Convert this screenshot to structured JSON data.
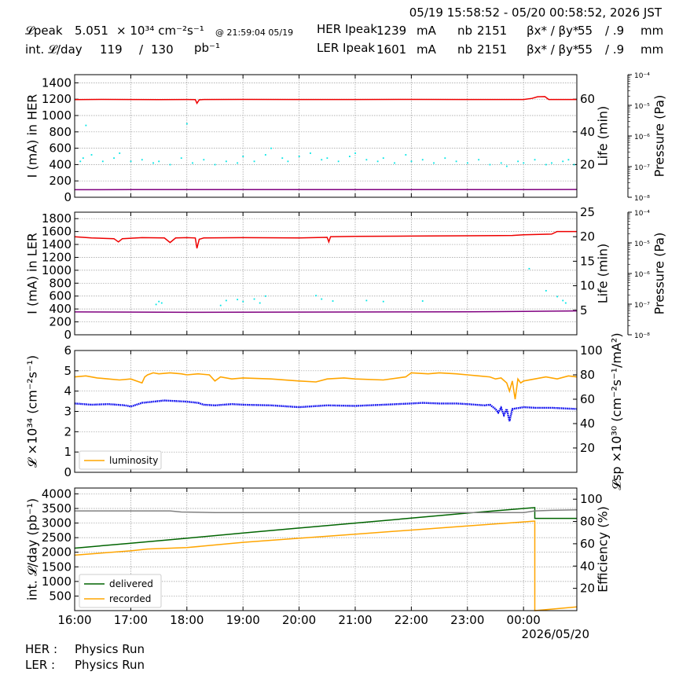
{
  "header": {
    "time_range": "05/19 15:58:52 - 05/20 00:58:52, 2026 JST",
    "lpeak_label": "𝓛peak",
    "lpeak_value": "5.051",
    "lpeak_unit": "× 10³⁴ cm⁻²s⁻¹",
    "lpeak_time": "@ 21:59:04 05/19",
    "intl_label": "int. 𝓛/day",
    "intl_value1": "119",
    "intl_sep": "/",
    "intl_value2": "130",
    "intl_unit": "pb⁻¹",
    "her_label": "HER Ipeak",
    "her_value": "1239",
    "her_unit": "mA",
    "ler_label": "LER Ipeak",
    "ler_value": "1601",
    "ler_unit": "mA",
    "nb_label": "nb",
    "nb_her": "2151",
    "nb_ler": "2151",
    "beta_label": "βx* / βy*",
    "beta_her_x": "55",
    "beta_her_y": "/ .9",
    "beta_ler_x": "55",
    "beta_ler_y": "/ .9",
    "beta_unit": "mm"
  },
  "footer": {
    "her_label": "HER :",
    "her_status": "Physics Run",
    "ler_label": "LER :",
    "ler_status": "Physics Run"
  },
  "colors": {
    "current": "#ee0000",
    "lifetime": "#00e5e5",
    "pressure": "#800080",
    "luminosity": "#ffa500",
    "specific_luminosity": "#0000ee",
    "delivered": "#006400",
    "recorded": "#ffa500",
    "efficiency": "#808080"
  },
  "chart_data": [
    {
      "type": "line",
      "panel": "her",
      "ylabel": "I (mA) in HER",
      "ylim": [
        0,
        1500
      ],
      "yticks": [
        0,
        200,
        400,
        600,
        800,
        1000,
        1200,
        1400
      ],
      "y2label": "Life (min)",
      "y2lim": [
        0,
        75
      ],
      "y2ticks": [
        20,
        40,
        60
      ],
      "y3label": "Pressure (Pa)",
      "y3ticks": [
        "10⁻⁴",
        "10⁻⁵",
        "10⁻⁶",
        "10⁻⁷",
        "10⁻⁸"
      ],
      "xlim": [
        16.0,
        24.95
      ],
      "grid": true,
      "series": [
        {
          "role": "current",
          "x": [
            16.0,
            16.5,
            17.0,
            17.5,
            18.0,
            18.15,
            18.18,
            18.22,
            18.3,
            19.0,
            20.0,
            21.0,
            22.0,
            23.0,
            24.0,
            24.15,
            24.25,
            24.38,
            24.45,
            24.95
          ],
          "y": [
            1195,
            1197,
            1196,
            1195,
            1196,
            1195,
            1150,
            1192,
            1196,
            1197,
            1196,
            1196,
            1197,
            1196,
            1196,
            1210,
            1230,
            1232,
            1196,
            1196
          ]
        },
        {
          "role": "pressure",
          "x": [
            16.0,
            17.0,
            18.0,
            19.0,
            20.0,
            21.0,
            22.0,
            23.0,
            24.0,
            24.95
          ],
          "y": [
            92,
            93,
            93,
            93,
            93,
            93,
            93,
            94,
            94,
            95
          ]
        },
        {
          "role": "lifetime",
          "x": [
            16.1,
            16.15,
            16.2,
            16.3,
            16.5,
            16.7,
            16.8,
            17.0,
            17.2,
            17.4,
            17.5,
            17.7,
            17.9,
            18.0,
            18.1,
            18.3,
            18.5,
            18.7,
            18.9,
            19.0,
            19.2,
            19.4,
            19.5,
            19.7,
            19.8,
            20.0,
            20.2,
            20.4,
            20.5,
            20.7,
            20.9,
            21.0,
            21.2,
            21.4,
            21.5,
            21.7,
            21.9,
            22.0,
            22.2,
            22.4,
            22.6,
            22.8,
            23.0,
            23.2,
            23.4,
            23.6,
            23.7,
            23.9,
            24.0,
            24.2,
            24.4,
            24.5,
            24.7,
            24.8,
            24.9
          ],
          "y": [
            22,
            24,
            44,
            26,
            22,
            24,
            27,
            22,
            23,
            21,
            22,
            20,
            24,
            45,
            21,
            23,
            20,
            22,
            21,
            25,
            22,
            26,
            30,
            24,
            22,
            25,
            27,
            23,
            24,
            22,
            25,
            27,
            23,
            22,
            24,
            21,
            26,
            22,
            23,
            21,
            24,
            22,
            21,
            23,
            20,
            21,
            19,
            22,
            21,
            23,
            20,
            21,
            22,
            23,
            20
          ]
        }
      ]
    },
    {
      "type": "line",
      "panel": "ler",
      "ylabel": "I (mA) in LER",
      "ylim": [
        0,
        1900
      ],
      "yticks": [
        0,
        200,
        400,
        600,
        800,
        1000,
        1200,
        1400,
        1600,
        1800
      ],
      "y2label": "Life (min)",
      "y2lim": [
        0,
        25
      ],
      "y2ticks": [
        5,
        10,
        15,
        20,
        25
      ],
      "y3label": "Pressure (Pa)",
      "y3ticks": [
        "10⁻⁴",
        "10⁻⁵",
        "10⁻⁶",
        "10⁻⁷",
        "10⁻⁸"
      ],
      "xlim": [
        16.0,
        24.95
      ],
      "grid": true,
      "series": [
        {
          "role": "current",
          "x": [
            16.0,
            16.3,
            16.7,
            16.78,
            16.85,
            17.2,
            17.6,
            17.7,
            17.8,
            18.0,
            18.15,
            18.18,
            18.22,
            18.3,
            19.0,
            20.0,
            20.5,
            20.53,
            20.56,
            21.0,
            22.0,
            23.0,
            23.8,
            24.0,
            24.5,
            24.6,
            24.95
          ],
          "y": [
            1520,
            1500,
            1490,
            1440,
            1490,
            1505,
            1500,
            1430,
            1500,
            1505,
            1500,
            1340,
            1480,
            1500,
            1505,
            1500,
            1510,
            1440,
            1520,
            1525,
            1530,
            1535,
            1540,
            1550,
            1560,
            1600,
            1600
          ]
        },
        {
          "role": "pressure",
          "x": [
            16.0,
            17.0,
            18.0,
            19.0,
            20.0,
            21.0,
            22.0,
            23.0,
            24.0,
            24.95
          ],
          "y": [
            355,
            352,
            348,
            350,
            352,
            353,
            354,
            356,
            362,
            370
          ]
        },
        {
          "role": "lifetime",
          "x": [
            17.45,
            17.5,
            17.55,
            18.6,
            18.7,
            18.9,
            19.0,
            19.2,
            19.3,
            19.4,
            20.3,
            20.4,
            20.6,
            21.2,
            21.5,
            22.2,
            24.1,
            24.4,
            24.6,
            24.7,
            24.75
          ],
          "y": [
            6.2,
            6.8,
            6.5,
            6.0,
            7.0,
            7.2,
            6.8,
            7.3,
            6.5,
            7.9,
            8.0,
            7.3,
            6.9,
            7.0,
            6.8,
            6.9,
            13.5,
            9.0,
            7.8,
            7.0,
            6.5
          ]
        }
      ]
    },
    {
      "type": "line",
      "panel": "luminosity",
      "ylabel": "𝓛 ×10³⁴ (cm⁻²s⁻¹)",
      "ylim": [
        0,
        6
      ],
      "yticks": [
        0,
        1,
        2,
        3,
        4,
        5,
        6
      ],
      "y2label": "𝓛sp ×10³⁰ (cm⁻²s⁻¹/mA²)",
      "y2lim": [
        0,
        100
      ],
      "y2ticks": [
        20,
        40,
        60,
        80,
        100
      ],
      "xlim": [
        16.0,
        24.95
      ],
      "grid": true,
      "legend": {
        "position": "lower-left",
        "entries": [
          "luminosity"
        ]
      },
      "series": [
        {
          "name": "luminosity",
          "role": "luminosity",
          "x": [
            16.0,
            16.2,
            16.4,
            16.6,
            16.8,
            17.0,
            17.2,
            17.25,
            17.3,
            17.4,
            17.5,
            17.7,
            17.9,
            18.0,
            18.2,
            18.4,
            18.5,
            18.6,
            18.8,
            19.0,
            19.5,
            20.0,
            20.3,
            20.5,
            20.8,
            21.0,
            21.5,
            21.9,
            22.0,
            22.3,
            22.5,
            22.8,
            23.0,
            23.2,
            23.4,
            23.5,
            23.6,
            23.7,
            23.75,
            23.8,
            23.85,
            23.9,
            23.95,
            24.0,
            24.2,
            24.4,
            24.6,
            24.8,
            24.95
          ],
          "y": [
            4.7,
            4.75,
            4.65,
            4.6,
            4.55,
            4.6,
            4.4,
            4.7,
            4.8,
            4.9,
            4.85,
            4.9,
            4.85,
            4.8,
            4.85,
            4.8,
            4.5,
            4.7,
            4.6,
            4.65,
            4.6,
            4.5,
            4.45,
            4.6,
            4.65,
            4.6,
            4.55,
            4.7,
            4.9,
            4.85,
            4.9,
            4.85,
            4.8,
            4.75,
            4.7,
            4.6,
            4.65,
            4.4,
            4.0,
            4.5,
            3.6,
            4.6,
            4.4,
            4.5,
            4.6,
            4.7,
            4.6,
            4.75,
            4.7
          ]
        },
        {
          "role": "specific_luminosity",
          "x": [
            16.0,
            16.3,
            16.6,
            16.9,
            17.0,
            17.2,
            17.4,
            17.6,
            17.8,
            18.0,
            18.2,
            18.3,
            18.5,
            18.8,
            19.0,
            19.5,
            20.0,
            20.5,
            21.0,
            21.5,
            22.0,
            22.2,
            22.5,
            22.8,
            23.0,
            23.3,
            23.4,
            23.5,
            23.55,
            23.6,
            23.65,
            23.7,
            23.75,
            23.8,
            24.0,
            24.2,
            24.5,
            24.7,
            24.95
          ],
          "y": [
            56.5,
            55.5,
            56,
            55,
            54,
            57,
            58,
            59,
            58.5,
            58,
            57,
            55.5,
            55,
            56,
            55.5,
            55,
            53.5,
            55,
            54.5,
            55.5,
            56.5,
            57,
            56.5,
            56.5,
            56,
            55,
            55.5,
            52,
            49,
            53,
            47,
            52,
            42,
            52,
            53.5,
            53,
            53,
            52.5,
            52
          ]
        }
      ]
    },
    {
      "type": "line",
      "panel": "integrated",
      "ylabel": "int. 𝓛/day (pb⁻¹)",
      "ylim": [
        0,
        4200
      ],
      "yticks": [
        500,
        1000,
        1500,
        2000,
        2500,
        3000,
        3500,
        4000
      ],
      "y2label": "Efficiency (%)",
      "y2lim": [
        0,
        110
      ],
      "y2ticks": [
        20,
        40,
        60,
        80,
        100
      ],
      "xlim": [
        16.0,
        24.95
      ],
      "xticks": [
        "16:00",
        "17:00",
        "18:00",
        "19:00",
        "20:00",
        "21:00",
        "22:00",
        "23:00",
        "00:00"
      ],
      "xdate": "2026/05/20",
      "grid": true,
      "legend": {
        "position": "lower-left",
        "entries": [
          "delivered",
          "recorded"
        ]
      },
      "series": [
        {
          "name": "delivered",
          "role": "delivered",
          "x": [
            16.0,
            17.0,
            18.0,
            19.0,
            20.0,
            21.0,
            22.0,
            23.0,
            24.0,
            24.2,
            24.2,
            24.95
          ],
          "y": [
            2140,
            2310,
            2480,
            2660,
            2830,
            3000,
            3170,
            3340,
            3500,
            3530,
            3160,
            3160
          ]
        },
        {
          "name": "recorded",
          "role": "recorded",
          "x": [
            16.0,
            17.0,
            17.3,
            18.0,
            19.0,
            20.0,
            21.0,
            22.0,
            23.0,
            24.0,
            24.2,
            24.2,
            24.95
          ],
          "y": [
            1900,
            2050,
            2110,
            2160,
            2340,
            2480,
            2620,
            2760,
            2900,
            3040,
            3070,
            0,
            130
          ]
        },
        {
          "name": "efficiency",
          "role": "efficiency",
          "x": [
            16.0,
            17.0,
            17.7,
            17.9,
            18.5,
            19.0,
            20.0,
            21.0,
            22.0,
            23.0,
            24.0,
            24.2,
            24.5,
            24.95
          ],
          "y": [
            89.5,
            89.5,
            89.5,
            88.5,
            88,
            88,
            88,
            88,
            88,
            88,
            88,
            89.5,
            90,
            90.5
          ]
        }
      ]
    }
  ]
}
